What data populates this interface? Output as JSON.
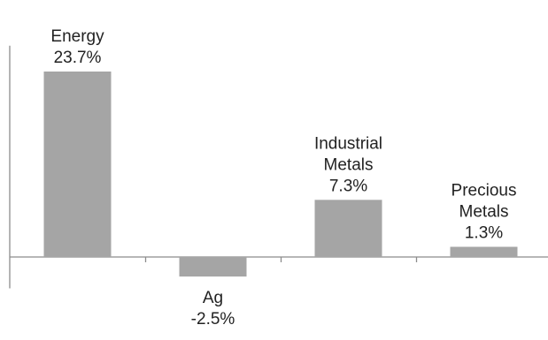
{
  "chart_data": {
    "type": "bar",
    "title": "",
    "xlabel": "",
    "ylabel": "",
    "grid": false,
    "legend": "none",
    "ylim": [
      -4.0,
      27.0
    ],
    "categories": [
      "Energy",
      "Ag",
      "Industrial Metals",
      "Precious Metals"
    ],
    "category_label_lines": [
      [
        "Energy"
      ],
      [
        "Ag"
      ],
      [
        "Industrial",
        "Metals"
      ],
      [
        "Precious",
        "Metals"
      ]
    ],
    "values": [
      23.7,
      -2.5,
      7.3,
      1.3
    ],
    "value_labels": [
      "23.7%",
      "-2.5%",
      "7.3%",
      "1.3%"
    ],
    "colors": {
      "bar": "#a5a5a5",
      "axis": "#8c8c8c",
      "text": "#222222"
    }
  }
}
